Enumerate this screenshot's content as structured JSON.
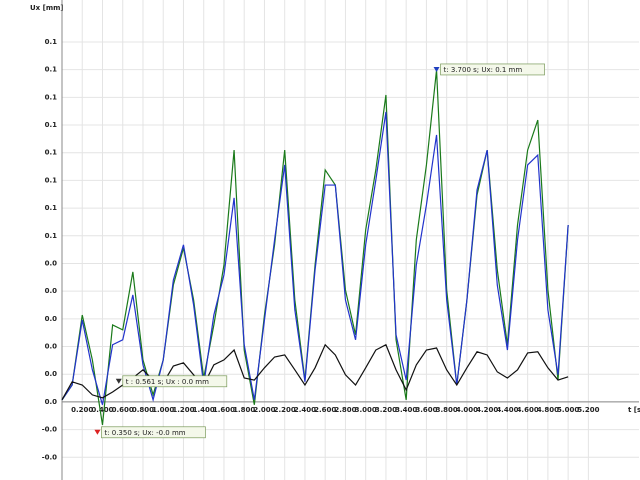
{
  "chart_data": {
    "type": "line",
    "x_label": "t [s]",
    "y_label": "Ux [mm]",
    "x": [
      0,
      0.1,
      0.2,
      0.3,
      0.4,
      0.5,
      0.6,
      0.7,
      0.8,
      0.9,
      1.0,
      1.1,
      1.2,
      1.3,
      1.4,
      1.5,
      1.6,
      1.7,
      1.8,
      1.9,
      2.0,
      2.1,
      2.2,
      2.3,
      2.4,
      2.5,
      2.6,
      2.7,
      2.8,
      2.9,
      3.0,
      3.1,
      3.2,
      3.3,
      3.4,
      3.5,
      3.6,
      3.7,
      3.8,
      3.9,
      4.0,
      4.1,
      4.2,
      4.3,
      4.4,
      4.5,
      4.6,
      4.7,
      4.8,
      4.9,
      5.0
    ],
    "series": [
      {
        "color": "#1a7a1a",
        "values": [
          0.0007,
          0.0058,
          0.0298,
          0.0144,
          -0.0079,
          0.0264,
          0.0247,
          0.0446,
          0.0144,
          0.0024,
          0.0144,
          0.0401,
          0.0528,
          0.035,
          0.0082,
          0.0264,
          0.047,
          0.0864,
          0.0178,
          -0.001,
          0.0298,
          0.0539,
          0.0864,
          0.035,
          0.0075,
          0.047,
          0.0796,
          0.0744,
          0.0384,
          0.023,
          0.059,
          0.0796,
          0.1053,
          0.0213,
          0.0007,
          0.0556,
          0.0813,
          0.1139,
          0.0384,
          0.0058,
          0.035,
          0.071,
          0.0864,
          0.0453,
          0.0196,
          0.0607,
          0.0864,
          0.0967,
          0.0384,
          0.0075,
          0.0607
        ]
      },
      {
        "color": "#2233cc",
        "values": [
          0.0007,
          0.0058,
          0.0281,
          0.011,
          -0.001,
          0.0196,
          0.0213,
          0.0367,
          0.0127,
          0.0007,
          0.0144,
          0.0418,
          0.0539,
          0.0333,
          0.0058,
          0.0298,
          0.0436,
          0.07,
          0.0196,
          0.0007,
          0.0281,
          0.0556,
          0.0813,
          0.0316,
          0.0069,
          0.0453,
          0.0744,
          0.0744,
          0.035,
          0.0213,
          0.0539,
          0.0761,
          0.0995,
          0.023,
          0.0075,
          0.047,
          0.0676,
          0.0916,
          0.035,
          0.0058,
          0.035,
          0.0727,
          0.0864,
          0.0401,
          0.0178,
          0.0556,
          0.0813,
          0.0847,
          0.0316,
          0.0093,
          0.0607
        ]
      },
      {
        "color": "#111111",
        "values": [
          0.0007,
          0.0069,
          0.0058,
          0.0024,
          0.0014,
          0.0034,
          0.0058,
          0.0082,
          0.011,
          0.0075,
          0.0065,
          0.0123,
          0.0134,
          0.0093,
          0.0058,
          0.0127,
          0.0144,
          0.0178,
          0.0082,
          0.0075,
          0.0117,
          0.0154,
          0.0161,
          0.011,
          0.0058,
          0.0117,
          0.0196,
          0.0161,
          0.0093,
          0.0058,
          0.0117,
          0.0178,
          0.0196,
          0.011,
          0.0041,
          0.0127,
          0.0178,
          0.0185,
          0.011,
          0.0058,
          0.0117,
          0.0172,
          0.0161,
          0.0103,
          0.0082,
          0.011,
          0.0168,
          0.0172,
          0.0117,
          0.0075,
          0.0086
        ]
      }
    ],
    "annotations": [
      {
        "label": "t: 3.700 s; Ux: 0.1 mm",
        "x": 3.7,
        "y": 0.1139,
        "color": "#1f3fbf"
      },
      {
        "label": "t : 0.561 s; Ux : 0.0 mm",
        "x": 0.561,
        "y": 0.0069,
        "color": "#333333"
      },
      {
        "label": "t: 0.350 s; Ux: -0.0 mm",
        "x": 0.35,
        "y": -0.0106,
        "color": "#dd2222"
      }
    ],
    "xlim": [
      0,
      5.7
    ],
    "ylim": [
      -0.0268,
      0.1379
    ],
    "xticks": [
      {
        "value": 0.2,
        "label": "0.200"
      },
      {
        "value": 0.4,
        "label": "0.400"
      },
      {
        "value": 0.6,
        "label": "0.600"
      },
      {
        "value": 0.8,
        "label": "0.800"
      },
      {
        "value": 1.0,
        "label": "1.000"
      },
      {
        "value": 1.2,
        "label": "1.200"
      },
      {
        "value": 1.4,
        "label": "1.400"
      },
      {
        "value": 1.6,
        "label": "1.600"
      },
      {
        "value": 1.8,
        "label": "1.800"
      },
      {
        "value": 2.0,
        "label": "2.000"
      },
      {
        "value": 2.2,
        "label": "2.200"
      },
      {
        "value": 2.4,
        "label": "2.400"
      },
      {
        "value": 2.6,
        "label": "2.600"
      },
      {
        "value": 2.8,
        "label": "2.800"
      },
      {
        "value": 3.0,
        "label": "3.000"
      },
      {
        "value": 3.2,
        "label": "3.200"
      },
      {
        "value": 3.4,
        "label": "3.400"
      },
      {
        "value": 3.6,
        "label": "3.600"
      },
      {
        "value": 3.8,
        "label": "3.800"
      },
      {
        "value": 4.0,
        "label": "4.000"
      },
      {
        "value": 4.2,
        "label": "4.200"
      },
      {
        "value": 4.4,
        "label": "4.400"
      },
      {
        "value": 4.6,
        "label": "4.600"
      },
      {
        "value": 4.8,
        "label": "4.800"
      },
      {
        "value": 5.0,
        "label": "5.000"
      },
      {
        "value": 5.2,
        "label": "5.200"
      }
    ],
    "yticks": [
      {
        "value": 0.1235,
        "label": "0.1"
      },
      {
        "value": 0.114,
        "label": "0.1"
      },
      {
        "value": 0.1045,
        "label": "0.1"
      },
      {
        "value": 0.095,
        "label": "0.1"
      },
      {
        "value": 0.0855,
        "label": "0.1"
      },
      {
        "value": 0.076,
        "label": "0.1"
      },
      {
        "value": 0.0665,
        "label": "0.1"
      },
      {
        "value": 0.057,
        "label": "0.1"
      },
      {
        "value": 0.0475,
        "label": "0.0"
      },
      {
        "value": 0.038,
        "label": "0.0"
      },
      {
        "value": 0.0285,
        "label": "0.0"
      },
      {
        "value": 0.019,
        "label": "0.0"
      },
      {
        "value": 0.0095,
        "label": "0.0"
      },
      {
        "value": 0,
        "label": "0.0"
      },
      {
        "value": -0.0095,
        "label": "-0.0"
      },
      {
        "value": -0.019,
        "label": "-0.0"
      }
    ],
    "grid": true
  }
}
